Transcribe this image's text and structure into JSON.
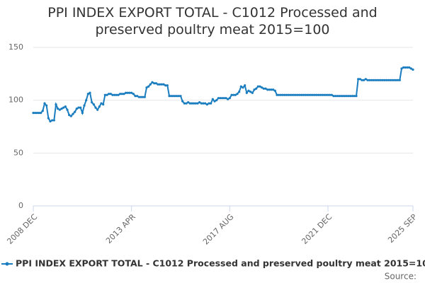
{
  "chart_data": {
    "type": "line",
    "title": "PPI INDEX EXPORT TOTAL - C1012 Processed and preserved poultry meat 2015=100",
    "source": "Source:",
    "categories": [
      "2008 DEC",
      null,
      null,
      null,
      null,
      null,
      null,
      null,
      null,
      null,
      null,
      null,
      null,
      null,
      null,
      null,
      null,
      null,
      null,
      null,
      null,
      null,
      null,
      null,
      null,
      null,
      null,
      null,
      null,
      null,
      null,
      null,
      null,
      null,
      null,
      null,
      null,
      null,
      null,
      null,
      null,
      null,
      null,
      null,
      null,
      null,
      null,
      null,
      null,
      null,
      null,
      null,
      "2013 APR",
      null,
      null,
      null,
      null,
      null,
      null,
      null,
      null,
      null,
      null,
      null,
      null,
      null,
      null,
      null,
      null,
      null,
      null,
      null,
      null,
      null,
      null,
      null,
      null,
      null,
      null,
      null,
      null,
      null,
      null,
      null,
      null,
      null,
      null,
      null,
      null,
      null,
      null,
      null,
      null,
      null,
      null,
      null,
      null,
      null,
      null,
      null,
      null,
      null,
      null,
      null,
      "2017 AUG",
      null,
      null,
      null,
      null,
      null,
      null,
      null,
      null,
      null,
      null,
      null,
      null,
      null,
      null,
      null,
      null,
      null,
      null,
      null,
      null,
      null,
      null,
      null,
      null,
      null,
      null,
      null,
      null,
      null,
      null,
      null,
      null,
      null,
      null,
      null,
      null,
      null,
      null,
      null,
      null,
      null,
      null,
      null,
      null,
      null,
      null,
      null,
      null,
      null,
      null,
      null,
      "2021 DEC",
      null,
      null,
      null,
      null,
      null,
      null,
      null,
      null,
      null,
      null,
      null,
      null,
      null,
      null,
      null,
      null,
      null,
      null,
      null,
      null,
      null,
      null,
      null,
      null,
      null,
      null,
      null,
      null,
      null,
      null,
      null,
      null,
      null,
      null,
      null,
      null,
      null,
      null,
      null,
      null,
      null,
      null,
      null,
      null,
      "2025 SEP"
    ],
    "series": [
      {
        "name": "PPI INDEX EXPORT TOTAL - C1012 Processed and preserved poultry meat 2015=100",
        "color": "#1a7dbf",
        "values": [
          88,
          88,
          88,
          88,
          88,
          90,
          97,
          95,
          83,
          80,
          81,
          81,
          96,
          92,
          91,
          92,
          93,
          94,
          91,
          86,
          85,
          87,
          89,
          92,
          93,
          93,
          88,
          95,
          100,
          106,
          107,
          98,
          96,
          93,
          91,
          94,
          97,
          96,
          105,
          105,
          106,
          106,
          105,
          105,
          105,
          105,
          106,
          106,
          106,
          107,
          107,
          107,
          107,
          106,
          104,
          104,
          103,
          103,
          103,
          103,
          112,
          113,
          115,
          117,
          116,
          116,
          115,
          115,
          115,
          115,
          114,
          114,
          104,
          104,
          104,
          104,
          104,
          104,
          104,
          99,
          97,
          97,
          98,
          97,
          97,
          97,
          97,
          97,
          98,
          97,
          97,
          97,
          96,
          97,
          97,
          101,
          99,
          100,
          102,
          102,
          102,
          102,
          102,
          101,
          102,
          105,
          105,
          105,
          106,
          108,
          113,
          112,
          114,
          107,
          109,
          108,
          107,
          110,
          111,
          113,
          113,
          112,
          111,
          111,
          110,
          110,
          110,
          110,
          109,
          105,
          105,
          105,
          105,
          105,
          105,
          105,
          105,
          105,
          105,
          105,
          105,
          105,
          105,
          105,
          105,
          105,
          105,
          105,
          105,
          105,
          105,
          105,
          105,
          105,
          105,
          105,
          105,
          105,
          105,
          104,
          104,
          104,
          104,
          104,
          104,
          104,
          104,
          104,
          104,
          104,
          104,
          104,
          120,
          120,
          119,
          119,
          120,
          119,
          119,
          119,
          119,
          119,
          119,
          119,
          119,
          119,
          119,
          119,
          119,
          119,
          119,
          119,
          119,
          119,
          119,
          130,
          131,
          131,
          131,
          131,
          130,
          129
        ]
      }
    ],
    "ylim": [
      0,
      150
    ],
    "yticks": [
      0,
      50,
      100,
      150
    ],
    "grid": true
  }
}
